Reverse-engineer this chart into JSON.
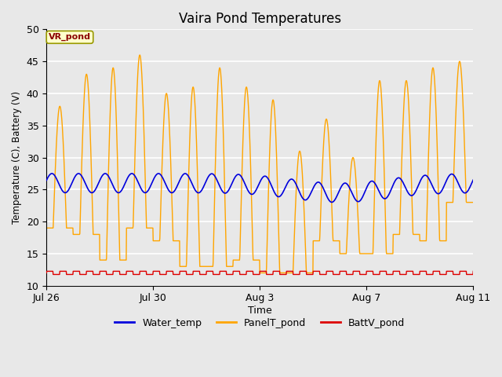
{
  "title": "Vaira Pond Temperatures",
  "xlabel": "Time",
  "ylabel": "Temperature (C), Battery (V)",
  "ylim": [
    10,
    50
  ],
  "yticks": [
    10,
    15,
    20,
    25,
    30,
    35,
    40,
    45,
    50
  ],
  "fig_bg_color": "#e8e8e8",
  "plot_bg_color": "#e8e8e8",
  "grid_color": "white",
  "annotation_text": "VR_pond",
  "annotation_bg": "#ffffcc",
  "annotation_border": "#999900",
  "annotation_text_color": "#8b0000",
  "water_color": "#0000dd",
  "panel_color": "#ffa500",
  "batt_color": "#dd0000",
  "legend_labels": [
    "Water_temp",
    "PanelT_pond",
    "BattV_pond"
  ],
  "x_tick_labels": [
    "Jul 26",
    "Jul 30",
    "Aug 3",
    "Aug 7",
    "Aug 11"
  ],
  "n_days": 17,
  "ppd": 96
}
